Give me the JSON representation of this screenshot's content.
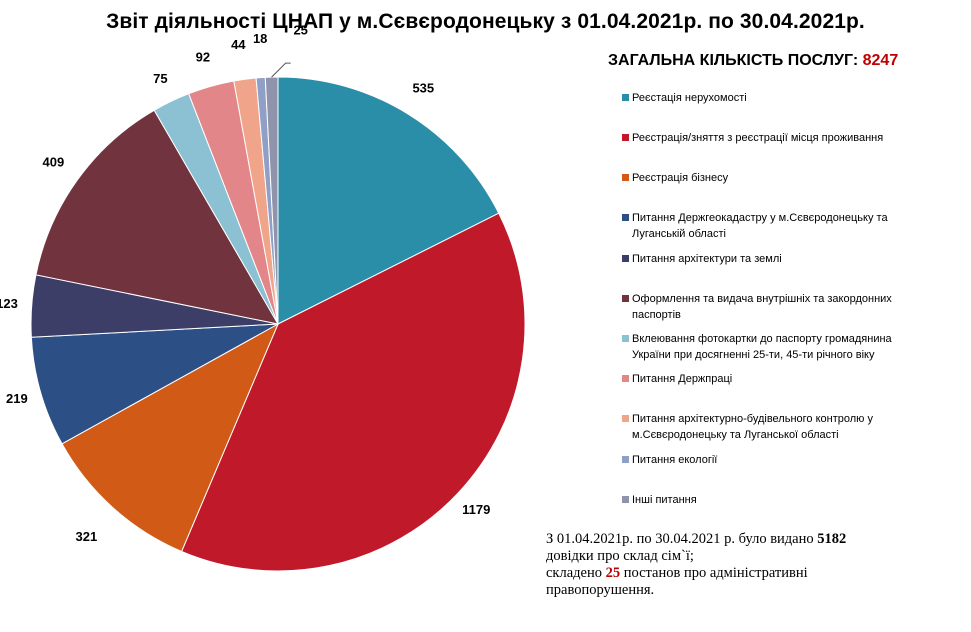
{
  "title": "Звіт діяльності ЦНАП у м.Сєвєродонецьку  з 01.04.2021р.  по 30.04.2021р.",
  "total": {
    "label": "ЗАГАЛЬНА КІЛЬКІСТЬ ПОСЛУГ:",
    "value": "8247"
  },
  "chart_data": {
    "type": "pie",
    "title": "Звіт діяльності ЦНАП у м.Сєвєродонецьку  з 01.04.2021р.  по 30.04.2021р.",
    "legend_position": "right",
    "categories": [
      "Реєстація нерухомості",
      "Реєстрація/зняття з реєстрації місця проживання",
      "Реєстрація бізнесу",
      "Питання Держгеокадастру у м.Сєвєродонецьку та Луганській області",
      "Питання архітектури та землі",
      "Оформлення та видача  внутрішніх та закордонних паспортів",
      "Вклеювання фотокартки  до паспорту громадянина України при досягненні 25-ти, 45-ти річного віку",
      "Питання Держпраці",
      "Питання архітектурно-будівельного контролю у м.Сєвєродонецьку та Луганської області",
      "Питання екології",
      "Інші питання"
    ],
    "values": [
      535,
      1179,
      321,
      219,
      123,
      409,
      75,
      92,
      44,
      18,
      25
    ],
    "labels": [
      "535",
      "1179",
      "321",
      "219",
      "123",
      "409",
      "75",
      "92",
      "44",
      "18",
      "25"
    ],
    "colors": [
      "#2a8ea8",
      "#c0192a",
      "#d05a16",
      "#2c4f86",
      "#3c3e68",
      "#71343f",
      "#8cc1d3",
      "#e3868a",
      "#f0a48a",
      "#8f9fc6",
      "#8f93ab"
    ]
  },
  "note": {
    "line1_pre": "З 01.04.2021р. по 30.04.2021 р. було видано ",
    "line1_num": "5182",
    "line2": "довідки про склад сім`ї;",
    "line3_pre": "складено ",
    "line3_num": "25",
    "line3_post": " постанов про адміністративні",
    "line4": "правопорушення."
  }
}
